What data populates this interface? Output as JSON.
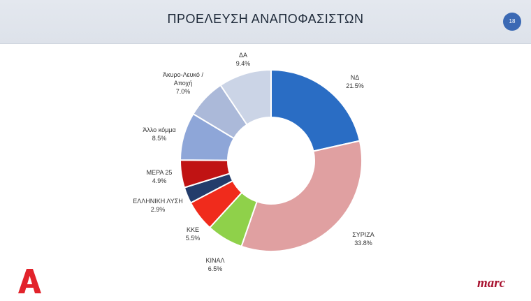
{
  "header": {
    "title": "ΠΡΟΕΛΕΥΣΗ ΑΝΑΠΟΦΑΣΙΣΤΩΝ",
    "page_number": "18"
  },
  "branding": {
    "channel_logo": "A",
    "pollster_logo": "marc"
  },
  "colors": {
    "header_bg": "#e0e5ec",
    "badge": "#3b69b4",
    "pollster": "#a8122f"
  },
  "chart_data": {
    "type": "pie",
    "style": "donut",
    "title": "",
    "slices": [
      {
        "label": "ΝΔ",
        "value": 21.5,
        "value_label": "21.5%",
        "color": "#2a6dc4"
      },
      {
        "label": "ΣΥΡΙΖΑ",
        "value": 33.8,
        "value_label": "33.8%",
        "color": "#e0a0a1"
      },
      {
        "label": "ΚΙΝΑΛ",
        "value": 6.5,
        "value_label": "6.5%",
        "color": "#8fd14a"
      },
      {
        "label": "ΚΚΕ",
        "value": 5.5,
        "value_label": "5.5%",
        "color": "#f02b1c"
      },
      {
        "label": "ΕΛΛΗΝΙΚΗ ΛΥΣΗ",
        "value": 2.9,
        "value_label": "2.9%",
        "color": "#233c6b"
      },
      {
        "label": "ΜΕΡΑ 25",
        "value": 4.9,
        "value_label": "4.9%",
        "color": "#c01313"
      },
      {
        "label": "Άλλο κόμμα",
        "value": 8.5,
        "value_label": "8.5%",
        "color": "#8ea6d8"
      },
      {
        "label": "Άκυρο-Λευκό / Αποχή",
        "value": 7.0,
        "value_label": "7.0%",
        "color": "#abb9d9"
      },
      {
        "label": "ΔΑ",
        "value": 9.4,
        "value_label": "9.4%",
        "color": "#cbd4e6"
      }
    ]
  }
}
